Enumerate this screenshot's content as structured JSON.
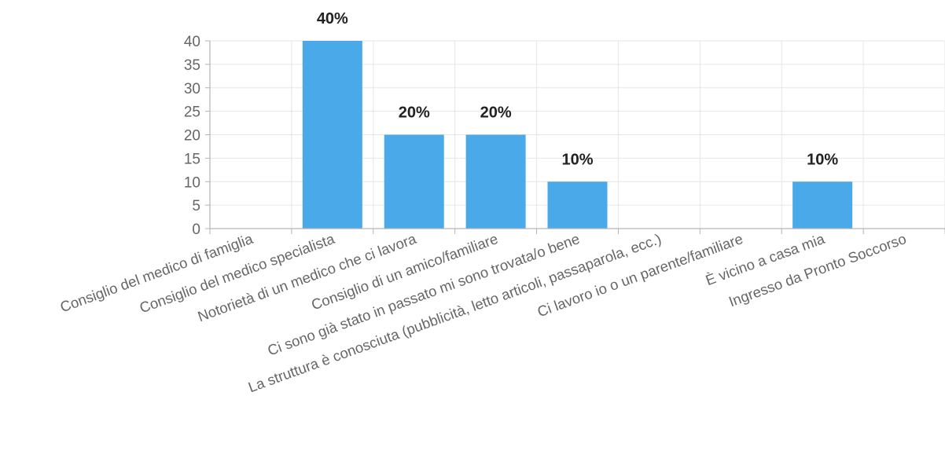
{
  "chart_data": {
    "type": "bar",
    "categories": [
      "Consiglio del medico di famiglia",
      "Consiglio del medico specialista",
      "Notorietà di un medico che ci lavora",
      "Consiglio di un amico/familiare",
      "Ci sono già stato in passato mi sono trovata/o bene",
      "La struttura è conosciuta (pubblicità, letto articoli, passaparola, ecc.)",
      "Ci lavoro io o un parente/familiare",
      "È vicino a casa mia",
      "Ingresso da Pronto Soccorso"
    ],
    "values": [
      0,
      40,
      20,
      20,
      10,
      0,
      0,
      10,
      0
    ],
    "data_labels": [
      "",
      "40%",
      "20%",
      "20%",
      "10%",
      "",
      "",
      "10%",
      ""
    ],
    "yticks": [
      "0",
      "5",
      "10",
      "15",
      "20",
      "25",
      "30",
      "35",
      "40"
    ],
    "ylim": [
      0,
      40
    ],
    "grid": true,
    "bar_color": "#4aa9e8",
    "grid_color": "#e6e6e6",
    "axis_color": "#b3b3b3"
  }
}
